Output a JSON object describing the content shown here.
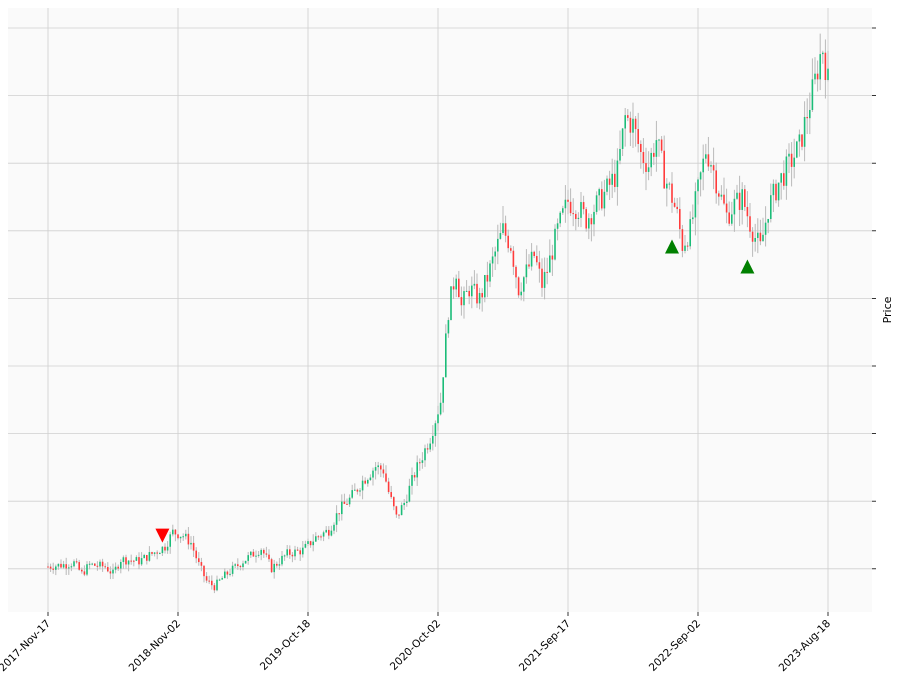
{
  "chart_data": {
    "type": "candlestick",
    "title": "",
    "xlabel": "",
    "ylabel": "Price",
    "grid": true,
    "legend": "none",
    "x_tick_labels": [
      "2017-Nov-17",
      "2018-Nov-02",
      "2019-Oct-18",
      "2020-Oct-02",
      "2021-Sep-17",
      "2022-Sep-02",
      "2023-Aug-18"
    ],
    "x_tick_weeks": [
      0,
      50,
      100,
      150,
      200,
      250,
      300
    ],
    "y_tick_labels": [
      "",
      "",
      "",
      "",
      "",
      "",
      "",
      "",
      ""
    ],
    "y_axis_range": [
      30,
      360
    ],
    "weeks": 301,
    "close_path": [
      [
        0,
        55
      ],
      [
        6,
        56
      ],
      [
        10,
        57
      ],
      [
        13,
        51
      ],
      [
        16,
        56
      ],
      [
        22,
        55
      ],
      [
        25,
        51
      ],
      [
        28,
        59
      ],
      [
        35,
        58
      ],
      [
        40,
        62
      ],
      [
        45,
        66
      ],
      [
        48,
        74
      ],
      [
        52,
        72
      ],
      [
        55,
        68
      ],
      [
        58,
        56
      ],
      [
        61,
        47
      ],
      [
        64,
        44
      ],
      [
        68,
        50
      ],
      [
        75,
        58
      ],
      [
        82,
        65
      ],
      [
        86,
        54
      ],
      [
        92,
        62
      ],
      [
        98,
        64
      ],
      [
        103,
        71
      ],
      [
        108,
        75
      ],
      [
        112,
        86
      ],
      [
        116,
        92
      ],
      [
        121,
        102
      ],
      [
        126,
        110
      ],
      [
        129,
        108
      ],
      [
        131,
        96
      ],
      [
        134,
        82
      ],
      [
        137,
        90
      ],
      [
        141,
        106
      ],
      [
        144,
        116
      ],
      [
        147,
        126
      ],
      [
        151,
        146
      ],
      [
        154,
        196
      ],
      [
        157,
        218
      ],
      [
        159,
        198
      ],
      [
        162,
        208
      ],
      [
        166,
        202
      ],
      [
        169,
        214
      ],
      [
        173,
        232
      ],
      [
        175,
        240
      ],
      [
        178,
        232
      ],
      [
        181,
        208
      ],
      [
        183,
        214
      ],
      [
        187,
        226
      ],
      [
        190,
        210
      ],
      [
        192,
        218
      ],
      [
        196,
        240
      ],
      [
        200,
        256
      ],
      [
        204,
        252
      ],
      [
        207,
        246
      ],
      [
        210,
        252
      ],
      [
        214,
        260
      ],
      [
        219,
        272
      ],
      [
        222,
        302
      ],
      [
        225,
        298
      ],
      [
        228,
        282
      ],
      [
        231,
        276
      ],
      [
        234,
        290
      ],
      [
        237,
        270
      ],
      [
        240,
        258
      ],
      [
        242,
        248
      ],
      [
        244,
        232
      ],
      [
        247,
        240
      ],
      [
        250,
        262
      ],
      [
        253,
        284
      ],
      [
        255,
        278
      ],
      [
        258,
        262
      ],
      [
        261,
        248
      ],
      [
        264,
        254
      ],
      [
        267,
        258
      ],
      [
        270,
        244
      ],
      [
        272,
        236
      ],
      [
        274,
        230
      ],
      [
        277,
        252
      ],
      [
        281,
        266
      ],
      [
        285,
        276
      ],
      [
        289,
        286
      ],
      [
        292,
        304
      ],
      [
        295,
        322
      ],
      [
        297,
        336
      ],
      [
        298,
        340
      ],
      [
        300,
        322
      ]
    ],
    "markers": [
      {
        "week": 44,
        "price": 72,
        "shape": "down-triangle",
        "color": "#ff0000"
      },
      {
        "week": 240,
        "price": 231,
        "shape": "up-triangle",
        "color": "#008000"
      },
      {
        "week": 269,
        "price": 220,
        "shape": "up-triangle",
        "color": "#008000"
      }
    ],
    "colors": {
      "up": "#1bbc78",
      "down": "#ff3b3b",
      "wick": "#b9b9b9",
      "grid": "#cfcfcf",
      "plot_bg": "#fafafa"
    }
  }
}
